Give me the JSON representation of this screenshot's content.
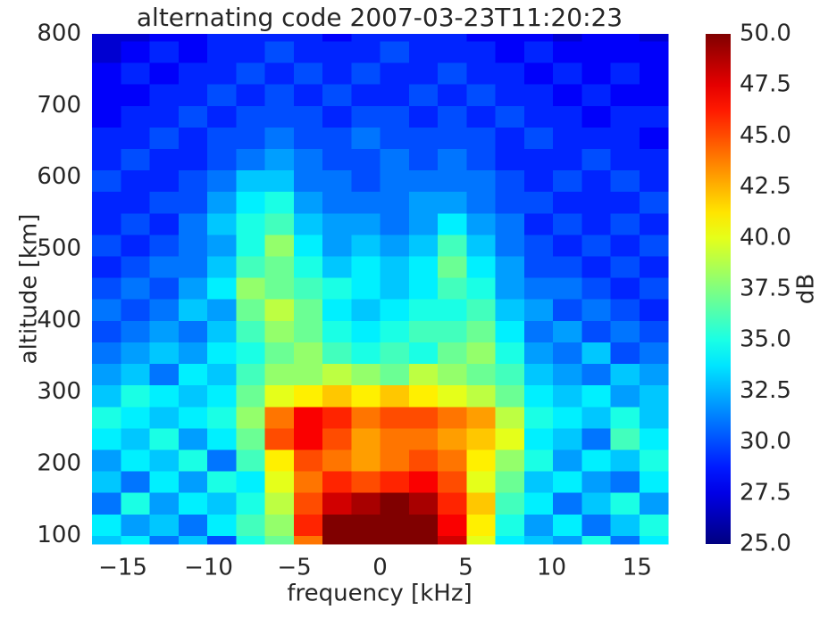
{
  "chart_data": {
    "type": "heatmap",
    "title": "alternating code 2007-03-23T11:20:23",
    "xlabel": "frequency [kHz]",
    "ylabel": "altitude [km]",
    "colorbar_label": "dB",
    "colormap": "jet",
    "xlim": [
      -16.8,
      16.8
    ],
    "xticks": [
      {
        "value": -15,
        "label": "−15"
      },
      {
        "value": -10,
        "label": "−10"
      },
      {
        "value": -5,
        "label": "−5"
      },
      0,
      5,
      10,
      15
    ],
    "ylim": [
      88,
      800
    ],
    "yticks": [
      100,
      200,
      300,
      400,
      500,
      600,
      700,
      800
    ],
    "zlim": [
      25,
      50
    ],
    "zticks": [
      {
        "value": 25,
        "label": "25.0"
      },
      27.5,
      {
        "value": 30,
        "label": "30.0"
      },
      32.5,
      {
        "value": 35,
        "label": "35.0"
      },
      37.5,
      {
        "value": 40,
        "label": "40.0"
      },
      42.5,
      {
        "value": 45,
        "label": "45.0"
      },
      47.5,
      {
        "value": 50,
        "label": "50.0"
      }
    ],
    "xbins": [
      -16.8,
      -15.12,
      -13.44,
      -11.76,
      -10.08,
      -8.4,
      -6.72,
      -5.04,
      -3.36,
      -1.68,
      0,
      1.68,
      3.36,
      5.04,
      6.72,
      8.4,
      10.08,
      11.76,
      13.44,
      15.12,
      16.8
    ],
    "ybins": [
      88,
      100,
      130,
      160,
      190,
      220,
      250,
      280,
      310,
      340,
      370,
      400,
      430,
      460,
      490,
      520,
      550,
      580,
      610,
      640,
      670,
      700,
      730,
      760,
      790,
      800
    ],
    "z": [
      [
        33,
        34,
        31,
        33,
        30,
        35,
        37,
        44,
        50,
        50,
        50,
        50,
        48,
        40,
        34,
        33,
        32,
        35,
        31,
        34
      ],
      [
        34,
        32,
        33,
        31,
        34,
        36,
        38,
        46,
        50,
        50,
        50,
        50,
        47,
        41,
        35,
        32,
        34,
        31,
        33,
        35
      ],
      [
        31,
        35,
        32,
        34,
        33,
        35,
        39,
        45,
        48,
        49,
        50,
        49,
        46,
        42,
        36,
        34,
        31,
        33,
        35,
        32
      ],
      [
        33,
        31,
        34,
        32,
        35,
        34,
        40,
        44,
        46,
        45,
        46,
        47,
        45,
        40,
        37,
        33,
        34,
        32,
        31,
        34
      ],
      [
        32,
        34,
        33,
        35,
        31,
        36,
        41,
        45,
        44,
        43,
        44,
        45,
        44,
        41,
        38,
        35,
        32,
        34,
        33,
        35
      ],
      [
        34,
        33,
        35,
        32,
        34,
        37,
        45,
        47,
        45,
        43,
        44,
        44,
        43,
        42,
        40,
        34,
        33,
        31,
        36,
        34
      ],
      [
        35,
        34,
        33,
        34,
        35,
        38,
        44,
        47,
        46,
        44,
        45,
        45,
        44,
        43,
        39,
        35,
        34,
        33,
        35,
        33
      ],
      [
        33,
        35,
        34,
        33,
        34,
        37,
        40,
        41,
        42,
        41,
        42,
        41,
        40,
        39,
        37,
        34,
        33,
        34,
        32,
        33
      ],
      [
        32,
        33,
        31,
        34,
        33,
        36,
        38,
        38,
        39,
        38,
        37,
        39,
        38,
        37,
        36,
        33,
        32,
        31,
        33,
        32
      ],
      [
        31,
        32,
        33,
        32,
        34,
        35,
        37,
        38,
        36,
        35,
        36,
        35,
        37,
        38,
        35,
        32,
        31,
        33,
        30,
        31
      ],
      [
        30,
        31,
        32,
        31,
        33,
        36,
        38,
        37,
        35,
        34,
        35,
        36,
        36,
        37,
        34,
        31,
        32,
        30,
        31,
        30
      ],
      [
        31,
        30,
        31,
        33,
        32,
        37,
        39,
        37,
        34,
        33,
        34,
        35,
        35,
        36,
        33,
        32,
        30,
        31,
        30,
        29
      ],
      [
        30,
        31,
        30,
        32,
        34,
        38,
        37,
        36,
        35,
        34,
        33,
        34,
        36,
        35,
        32,
        31,
        31,
        30,
        29,
        30
      ],
      [
        29,
        30,
        31,
        31,
        33,
        36,
        37,
        35,
        33,
        34,
        33,
        34,
        37,
        34,
        32,
        30,
        30,
        29,
        30,
        29
      ],
      [
        30,
        29,
        30,
        31,
        32,
        35,
        38,
        34,
        32,
        33,
        32,
        33,
        36,
        33,
        31,
        30,
        29,
        30,
        29,
        30
      ],
      [
        29,
        30,
        29,
        31,
        33,
        35,
        36,
        33,
        32,
        32,
        31,
        32,
        34,
        32,
        31,
        29,
        30,
        29,
        30,
        29
      ],
      [
        29,
        29,
        30,
        30,
        32,
        34,
        35,
        32,
        31,
        31,
        31,
        32,
        32,
        31,
        30,
        30,
        29,
        29,
        29,
        30
      ],
      [
        30,
        29,
        29,
        30,
        31,
        33,
        33,
        31,
        31,
        30,
        31,
        31,
        31,
        31,
        30,
        29,
        30,
        29,
        30,
        29
      ],
      [
        29,
        30,
        29,
        29,
        30,
        31,
        32,
        31,
        30,
        30,
        31,
        30,
        31,
        30,
        29,
        29,
        29,
        30,
        29,
        29
      ],
      [
        29,
        29,
        30,
        29,
        30,
        30,
        31,
        30,
        30,
        31,
        30,
        30,
        30,
        30,
        29,
        30,
        29,
        29,
        29,
        28
      ],
      [
        28,
        29,
        29,
        30,
        29,
        30,
        30,
        30,
        29,
        30,
        30,
        29,
        30,
        29,
        30,
        29,
        29,
        28,
        29,
        29
      ],
      [
        28,
        28,
        29,
        29,
        30,
        29,
        30,
        29,
        30,
        29,
        29,
        30,
        29,
        30,
        29,
        29,
        28,
        29,
        28,
        28
      ],
      [
        28,
        29,
        28,
        29,
        29,
        30,
        29,
        30,
        29,
        30,
        29,
        29,
        30,
        29,
        29,
        28,
        29,
        28,
        29,
        28
      ],
      [
        27,
        28,
        29,
        28,
        29,
        29,
        30,
        29,
        29,
        29,
        30,
        29,
        29,
        29,
        28,
        29,
        28,
        28,
        28,
        28
      ],
      [
        27,
        27,
        28,
        28,
        29,
        29,
        29,
        29,
        28,
        29,
        29,
        29,
        29,
        28,
        28,
        28,
        27,
        28,
        28,
        27
      ]
    ]
  }
}
